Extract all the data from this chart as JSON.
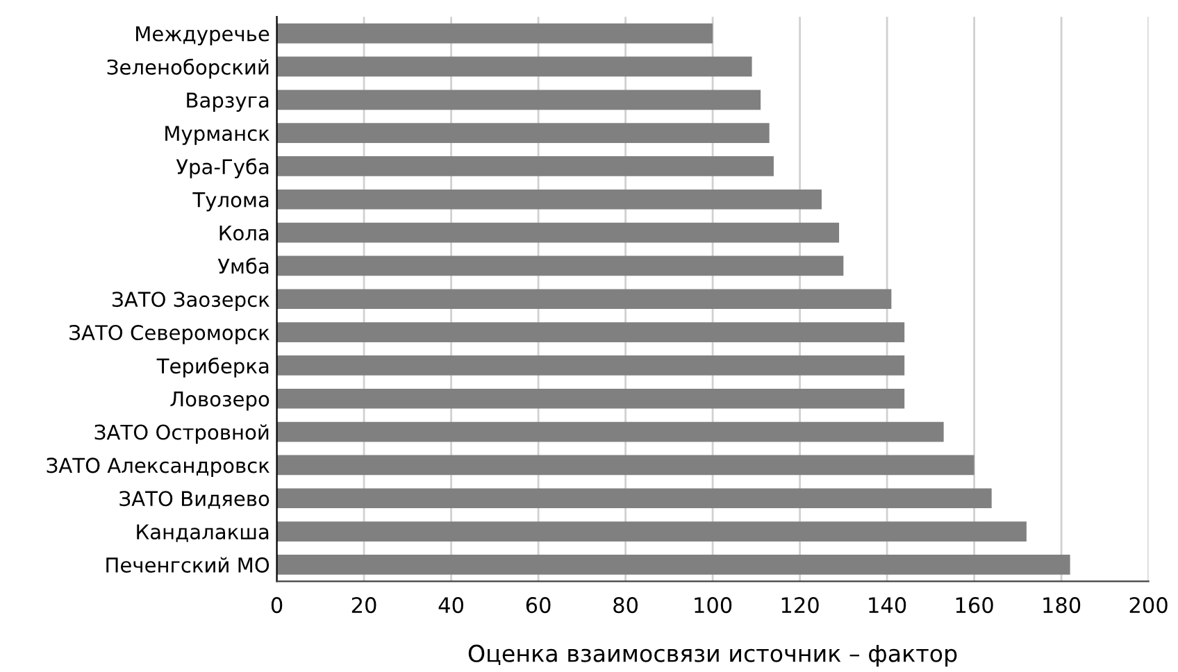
{
  "chart_data": {
    "type": "bar",
    "orientation": "horizontal",
    "xlabel": "Оценка взаимосвязи источник – фактор",
    "categories": [
      "Междуречье",
      "Зеленоборский",
      "Варзуга",
      "Мурманск",
      "Ура-Губа",
      "Тулома",
      "Кола",
      "Умба",
      "ЗАТО Заозерск",
      "ЗАТО Североморск",
      "Териберка",
      "Ловозеро",
      "ЗАТО Островной",
      "ЗАТО Александровск",
      "ЗАТО Видяево",
      "Кандалакша",
      "Печенгский МО"
    ],
    "values": [
      100,
      109,
      111,
      113,
      114,
      125,
      129,
      130,
      141,
      144,
      144,
      144,
      153,
      160,
      164,
      172,
      182
    ],
    "color": "#808080",
    "xlim": [
      0,
      200
    ],
    "xticks": [
      0,
      20,
      40,
      60,
      80,
      100,
      120,
      140,
      160,
      180,
      200
    ],
    "grid": "x"
  }
}
